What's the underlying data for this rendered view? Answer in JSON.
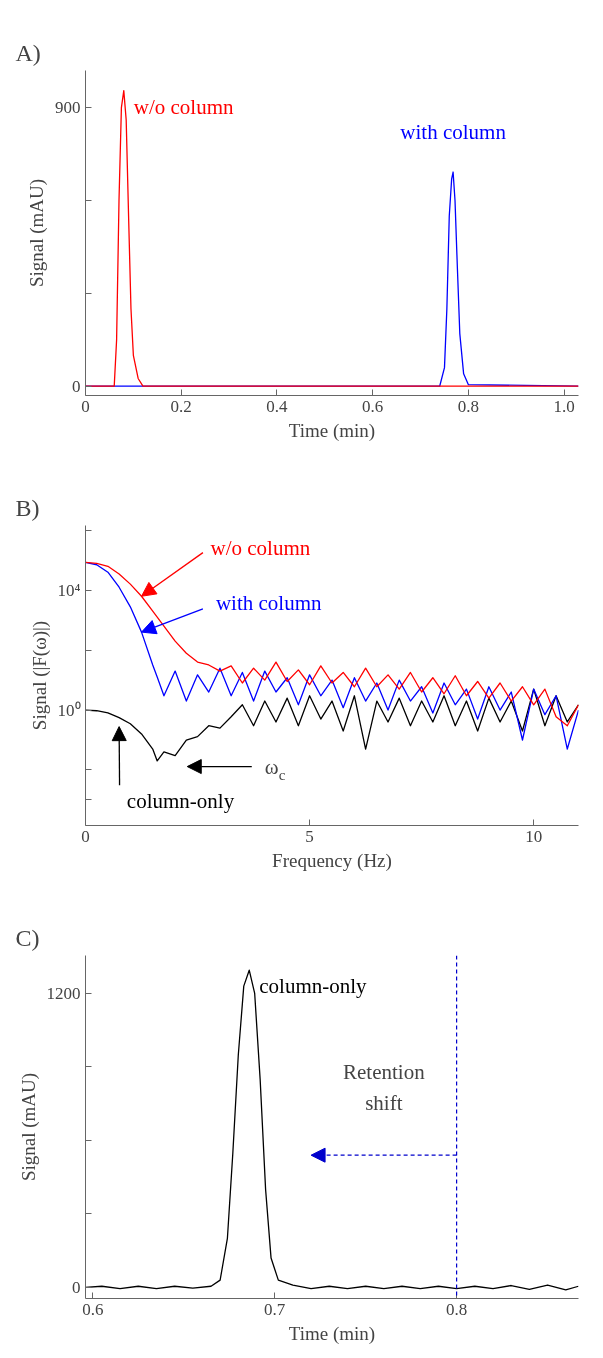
{
  "chart_data": [
    {
      "type": "line",
      "title": "A)",
      "xlabel": "Time (min)",
      "ylabel": "Signal (mAU)",
      "xlim": [
        0,
        1.03
      ],
      "ylim": [
        -30,
        1020
      ],
      "xticks": [
        0,
        0.2,
        0.4,
        0.6,
        0.8,
        {
          "value": 1,
          "label": "1.0"
        }
      ],
      "yticks": [
        0,
        {
          "value": 300,
          "label": null
        },
        {
          "value": 600,
          "label": null
        },
        900
      ],
      "series": [
        {
          "name": "w/o column",
          "color": "#ff0000",
          "x": [
            0,
            0.06,
            0.065,
            0.07,
            0.075,
            0.08,
            0.085,
            0.09,
            0.095,
            0.1,
            0.11,
            0.12,
            1.03
          ],
          "values": [
            0,
            0,
            150,
            600,
            900,
            955,
            860,
            550,
            250,
            100,
            25,
            0,
            0
          ]
        },
        {
          "name": "with column",
          "color": "#0000ff",
          "x": [
            0,
            0.74,
            0.75,
            0.755,
            0.76,
            0.765,
            0.768,
            0.772,
            0.777,
            0.782,
            0.79,
            0.8,
            1.03
          ],
          "values": [
            0,
            0,
            60,
            250,
            550,
            670,
            692,
            600,
            380,
            170,
            40,
            5,
            0
          ]
        }
      ]
    },
    {
      "type": "line",
      "title": "B)",
      "xlabel": "Frequency (Hz)",
      "ylabel": "Signal (|F(ω)|)",
      "log": "y",
      "xlim": [
        0,
        11
      ],
      "ylim": [
        0.00014,
        1450000
      ],
      "xticks": [
        0,
        5,
        10
      ],
      "yticks": [
        {
          "value": 0.001,
          "label": null
        },
        {
          "value": 0.01,
          "label": null
        },
        {
          "value": 1,
          "label": "10⁰"
        },
        {
          "value": 100,
          "label": null
        },
        {
          "value": 10000,
          "label": "10⁴"
        },
        {
          "value": 1000000,
          "label": null
        }
      ],
      "annotations": [
        "ω$_{c}$"
      ],
      "series": [
        {
          "name": "w/o column",
          "color": "#ff0000",
          "x": [
            0,
            0.25,
            0.5,
            0.75,
            1,
            1.25,
            1.5,
            1.75,
            2,
            2.25,
            2.5,
            2.75,
            3,
            3.25,
            3.5,
            3.75,
            4,
            4.25,
            4.5,
            4.75,
            5,
            5.25,
            5.5,
            5.75,
            6,
            6.25,
            6.5,
            6.75,
            7,
            7.25,
            7.5,
            7.75,
            8,
            8.25,
            8.5,
            8.75,
            9,
            9.25,
            9.5,
            9.75,
            10,
            10.25,
            10.5,
            10.75,
            11
          ],
          "values": [
            85000,
            79000,
            63000,
            35000,
            16000,
            6300,
            2000,
            630,
            200,
            79,
            40,
            32,
            20,
            30,
            8,
            25,
            10,
            40,
            9,
            22,
            7,
            30,
            8,
            18,
            6,
            25,
            6,
            15,
            5,
            18,
            4,
            12,
            3.5,
            14,
            3,
            9,
            2.5,
            8,
            2,
            6,
            1.5,
            5,
            0.6,
            0.3,
            1.5
          ]
        },
        {
          "name": "with column",
          "color": "#0000ff",
          "x": [
            0,
            0.25,
            0.5,
            0.75,
            1,
            1.25,
            1.5,
            1.6,
            1.75,
            2,
            2.25,
            2.5,
            2.75,
            3,
            3.25,
            3.5,
            3.75,
            4,
            4.25,
            4.5,
            4.75,
            5,
            5.25,
            5.5,
            5.75,
            6,
            6.25,
            6.5,
            6.75,
            7,
            7.25,
            7.5,
            7.75,
            8,
            8.25,
            8.5,
            8.75,
            9,
            9.25,
            9.5,
            9.75,
            10,
            10.25,
            10.5,
            10.75,
            11
          ],
          "values": [
            85000,
            71000,
            40000,
            12600,
            2800,
            400,
            32,
            12.6,
            3,
            20,
            2,
            15,
            4,
            25,
            3,
            18,
            2,
            20,
            4,
            12,
            1.5,
            15,
            3,
            10,
            1.2,
            12,
            2,
            8,
            1,
            10,
            2,
            6,
            0.8,
            8,
            1.5,
            5,
            0.5,
            6,
            1,
            4,
            0.1,
            5,
            0.7,
            3,
            0.05,
            1
          ]
        },
        {
          "name": "column-only",
          "color": "#000000",
          "x": [
            0,
            0.25,
            0.5,
            0.75,
            1,
            1.25,
            1.5,
            1.6,
            1.75,
            2,
            2.25,
            2.5,
            2.75,
            3,
            3.25,
            3.5,
            3.75,
            4,
            4.25,
            4.5,
            4.75,
            5,
            5.25,
            5.5,
            5.75,
            6,
            6.25,
            6.5,
            6.75,
            7,
            7.25,
            7.5,
            7.75,
            8,
            8.25,
            8.5,
            8.75,
            9,
            9.25,
            9.5,
            9.75,
            10,
            10.25,
            10.5,
            10.75,
            11
          ],
          "values": [
            1,
            0.95,
            0.8,
            0.56,
            0.35,
            0.16,
            0.05,
            0.02,
            0.04,
            0.03,
            0.1,
            0.13,
            0.3,
            0.25,
            0.6,
            1.5,
            0.3,
            2,
            0.4,
            2.5,
            0.3,
            3,
            0.5,
            2,
            0.2,
            3,
            0.05,
            2,
            0.4,
            2.5,
            0.3,
            2,
            0.4,
            3,
            0.3,
            2,
            0.2,
            2.5,
            0.4,
            2,
            0.2,
            5,
            0.3,
            3,
            0.4,
            1.5
          ]
        }
      ]
    },
    {
      "type": "line",
      "title": "C)",
      "xlabel": "Time (min)",
      "ylabel": "Signal (mAU)",
      "xlim": [
        0.596,
        0.867
      ],
      "ylim": [
        -45,
        1355
      ],
      "xticks": [
        0.6,
        0.7,
        0.8
      ],
      "yticks": [
        0,
        {
          "value": 300,
          "label": null
        },
        {
          "value": 600,
          "label": null
        },
        {
          "value": 900,
          "label": null
        },
        1200
      ],
      "ref_lines": [
        {
          "axis": "x",
          "value": 0.8,
          "color": "#0000cc",
          "line_style": "dashed"
        }
      ],
      "annotations": [
        "Retention\nshift"
      ],
      "series": [
        {
          "name": "column-only",
          "color": "#000000",
          "x": [
            0.596,
            0.605,
            0.615,
            0.625,
            0.635,
            0.645,
            0.655,
            0.665,
            0.67,
            0.674,
            0.677,
            0.68,
            0.683,
            0.686,
            0.689,
            0.692,
            0.695,
            0.698,
            0.702,
            0.71,
            0.72,
            0.73,
            0.74,
            0.75,
            0.76,
            0.77,
            0.78,
            0.79,
            0.8,
            0.81,
            0.82,
            0.83,
            0.84,
            0.85,
            0.86,
            0.867
          ],
          "values": [
            0,
            5,
            -5,
            5,
            -5,
            5,
            -3,
            5,
            30,
            200,
            550,
            950,
            1230,
            1295,
            1200,
            850,
            400,
            120,
            30,
            10,
            -5,
            5,
            -5,
            5,
            -5,
            5,
            -5,
            5,
            -5,
            5,
            -5,
            8,
            -8,
            10,
            -10,
            5
          ]
        }
      ]
    }
  ]
}
